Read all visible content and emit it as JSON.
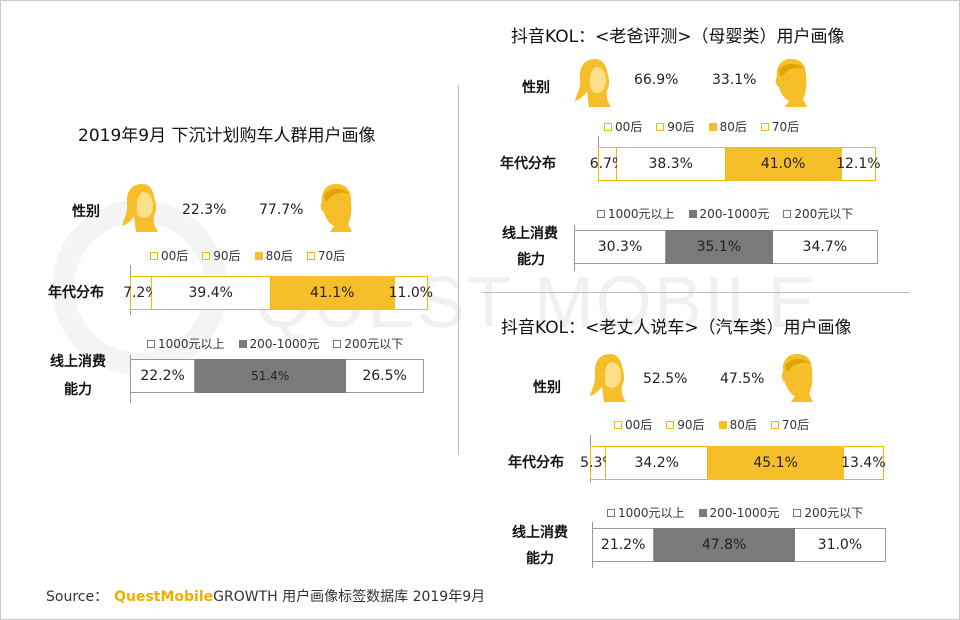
{
  "colors": {
    "accent": "#F6BE28",
    "dark": "#7a7a7a",
    "outline": "#F2B900"
  },
  "watermark": "QUEST MOBILE",
  "source": {
    "label": "Source：",
    "brand": "QuestMobile",
    "text": "GROWTH 用户画像标签数据库  2019年9月"
  },
  "panels": [
    {
      "title": "2019年9月 下沉计划购车人群用户画像",
      "gender_label": "性别",
      "female": "22.3%",
      "male": "77.7%",
      "age_label": "年代分布",
      "age_legend": [
        "00后",
        "90后",
        "80后",
        "70后"
      ],
      "consume_label_1": "线上消费",
      "consume_label_2": "能力",
      "consume_legend": [
        "1000元以上",
        "200-1000元",
        "200元以下"
      ]
    },
    {
      "title": "抖音KOL：<老爸评测>（母婴类）用户画像",
      "gender_label": "性别",
      "female": "66.9%",
      "male": "33.1%",
      "age_label": "年代分布",
      "age_legend": [
        "00后",
        "90后",
        "80后",
        "70后"
      ],
      "consume_label_1": "线上消费",
      "consume_label_2": "能力",
      "consume_legend": [
        "1000元以上",
        "200-1000元",
        "200元以下"
      ]
    },
    {
      "title": "抖音KOL：<老丈人说车>（汽车类）用户画像",
      "gender_label": "性别",
      "female": "52.5%",
      "male": "47.5%",
      "age_label": "年代分布",
      "age_legend": [
        "00后",
        "90后",
        "80后",
        "70后"
      ],
      "consume_label_1": "线上消费",
      "consume_label_2": "能力",
      "consume_legend": [
        "1000元以上",
        "200-1000元",
        "200元以下"
      ]
    }
  ],
  "chart_data": [
    {
      "type": "bar",
      "title": "2019年9月 下沉计划购车人群用户画像",
      "gender": {
        "female": 22.3,
        "male": 77.7
      },
      "age": {
        "categories": [
          "00后",
          "90后",
          "80后",
          "70后"
        ],
        "values": [
          7.2,
          39.4,
          41.1,
          11.0
        ],
        "labels": [
          "7.2%",
          "39.4%",
          "41.1%",
          "11.0%"
        ]
      },
      "consumption": {
        "categories": [
          "1000元以上",
          "200-1000元",
          "200元以下"
        ],
        "values": [
          22.2,
          51.4,
          26.5
        ],
        "labels": [
          "22.2%",
          "51.4%",
          "26.5%"
        ]
      }
    },
    {
      "type": "bar",
      "title": "抖音KOL：<老爸评测>（母婴类）用户画像",
      "gender": {
        "female": 66.9,
        "male": 33.1
      },
      "age": {
        "categories": [
          "00后",
          "90后",
          "80后",
          "70后"
        ],
        "values": [
          6.7,
          38.3,
          41.0,
          12.1
        ],
        "labels": [
          "6.7%",
          "38.3%",
          "41.0%",
          "12.1%"
        ]
      },
      "consumption": {
        "categories": [
          "1000元以上",
          "200-1000元",
          "200元以下"
        ],
        "values": [
          30.3,
          35.1,
          34.7
        ],
        "labels": [
          "30.3%",
          "35.1%",
          "34.7%"
        ]
      }
    },
    {
      "type": "bar",
      "title": "抖音KOL：<老丈人说车>（汽车类）用户画像",
      "gender": {
        "female": 52.5,
        "male": 47.5
      },
      "age": {
        "categories": [
          "00后",
          "90后",
          "80后",
          "70后"
        ],
        "values": [
          5.3,
          34.2,
          45.1,
          13.4
        ],
        "labels": [
          "5.3%",
          "34.2%",
          "45.1%",
          "13.4%"
        ]
      },
      "consumption": {
        "categories": [
          "1000元以上",
          "200-1000元",
          "200元以下"
        ],
        "values": [
          21.2,
          47.8,
          31.0
        ],
        "labels": [
          "21.2%",
          "47.8%",
          "31.0%"
        ]
      }
    }
  ]
}
